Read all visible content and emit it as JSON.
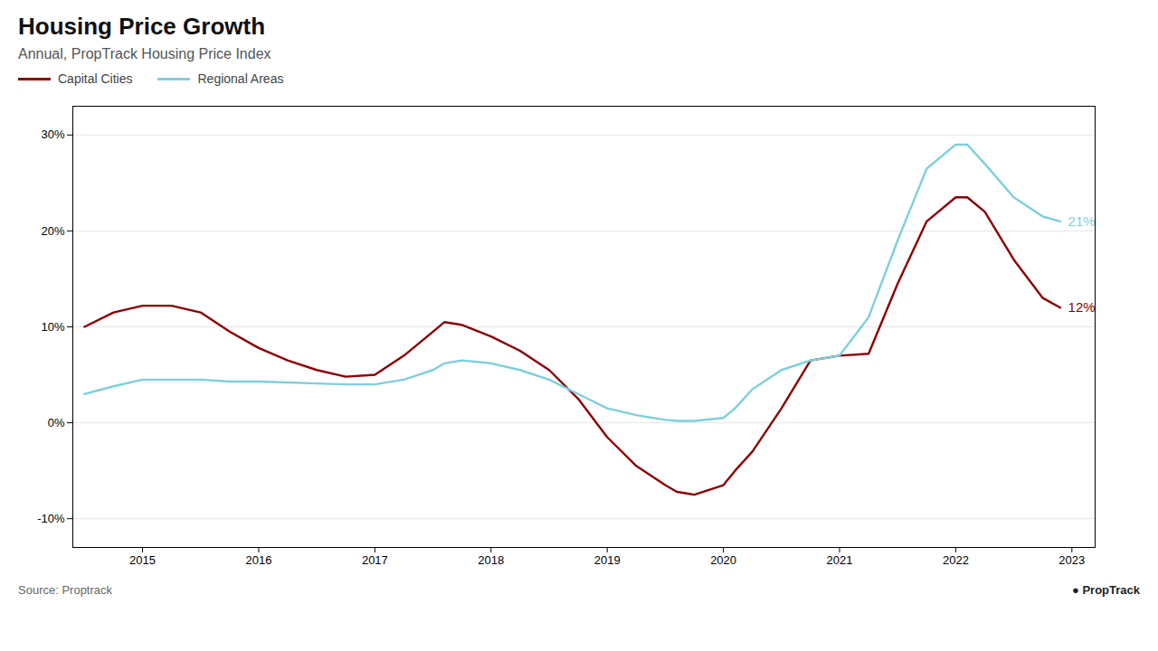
{
  "chart_data": {
    "type": "line",
    "title": "Housing Price Growth",
    "subtitle": "Annual, PropTrack Housing Price Index",
    "source": "Source: Proptrack",
    "logo": "● PropTrack",
    "x": [
      2014.5,
      2014.75,
      2015.0,
      2015.25,
      2015.5,
      2015.75,
      2016.0,
      2016.25,
      2016.5,
      2016.75,
      2017.0,
      2017.25,
      2017.5,
      2017.6,
      2017.75,
      2018.0,
      2018.25,
      2018.5,
      2018.75,
      2019.0,
      2019.25,
      2019.5,
      2019.6,
      2019.75,
      2020.0,
      2020.1,
      2020.25,
      2020.5,
      2020.75,
      2021.0,
      2021.25,
      2021.5,
      2021.75,
      2022.0,
      2022.1,
      2022.25,
      2022.5,
      2022.75,
      2022.9
    ],
    "series": [
      {
        "name": "Capital Cities",
        "color": "#8b0000",
        "values": [
          10.0,
          11.5,
          12.2,
          12.2,
          11.5,
          9.5,
          7.8,
          6.5,
          5.5,
          4.8,
          5.0,
          7.0,
          9.5,
          10.5,
          10.2,
          9.0,
          7.5,
          5.5,
          2.5,
          -1.5,
          -4.5,
          -6.5,
          -7.2,
          -7.5,
          -6.5,
          -5.0,
          -3.0,
          1.5,
          6.5,
          7.0,
          7.2,
          14.5,
          21.0,
          23.5,
          23.5,
          22.0,
          17.0,
          13.0,
          12.0
        ]
      },
      {
        "name": "Regional Areas",
        "color": "#7ecfdc",
        "values": [
          3.0,
          3.8,
          4.5,
          4.5,
          4.5,
          4.3,
          4.3,
          4.2,
          4.1,
          4.0,
          4.0,
          4.5,
          5.5,
          6.2,
          6.5,
          6.2,
          5.5,
          4.5,
          3.0,
          1.5,
          0.8,
          0.3,
          0.2,
          0.2,
          0.5,
          1.5,
          3.5,
          5.5,
          6.5,
          7.0,
          11.0,
          19.0,
          26.5,
          29.0,
          29.0,
          27.0,
          23.5,
          21.5,
          21.0
        ]
      }
    ],
    "annotations": [
      {
        "text": "21%",
        "x": 2022.92,
        "y": 21.0,
        "color": "#7ecfdc"
      },
      {
        "text": "12%",
        "x": 2022.92,
        "y": 12.0,
        "color": "#8b0000"
      }
    ],
    "xlim": [
      2014.4,
      2023.2
    ],
    "xticks": [
      2015,
      2016,
      2017,
      2018,
      2019,
      2020,
      2021,
      2022,
      2023
    ],
    "ylim": [
      -13,
      33
    ],
    "yticks": [
      {
        "value": -10,
        "label": "-10%"
      },
      {
        "value": 0,
        "label": "0%"
      },
      {
        "value": 10,
        "label": "10%"
      },
      {
        "value": 20,
        "label": "20%"
      },
      {
        "value": 30,
        "label": "30%"
      }
    ],
    "grid": true,
    "legend": "upper left"
  }
}
